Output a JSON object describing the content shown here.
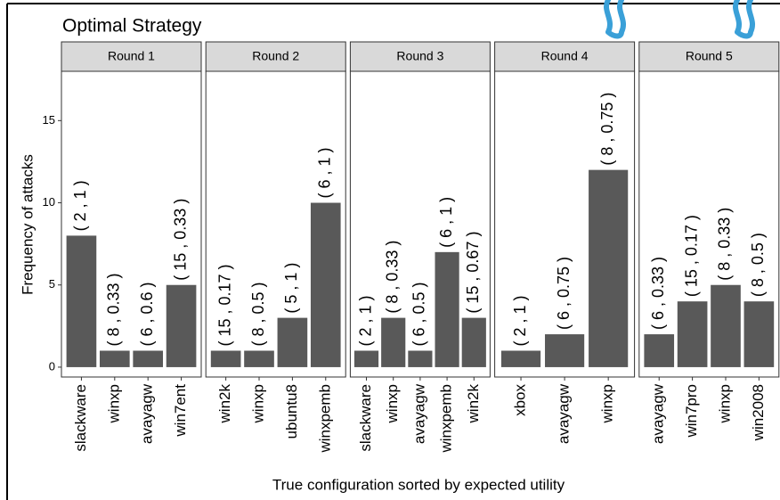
{
  "chart_data": {
    "type": "bar",
    "title": "Optimal Strategy",
    "y_label": "Frequency of attacks",
    "x_label": "True configuration sorted by expected utility",
    "color": "#595959",
    "ylim": [
      -0.6,
      18.0
    ],
    "yticks": [
      0,
      5,
      10,
      15
    ],
    "facets": [
      {
        "title": "Round 1",
        "categories": [
          "slackware",
          "winxp",
          "avayagw",
          "win7ent"
        ],
        "values": [
          8,
          1,
          1,
          5
        ],
        "annotations": [
          "( 2 , 1 )",
          "( 8 , 0.33 )",
          "( 6 , 0.6 )",
          "( 15 , 0.33 )"
        ]
      },
      {
        "title": "Round 2",
        "categories": [
          "win2k",
          "winxp",
          "ubuntu8",
          "winxpemb"
        ],
        "values": [
          1,
          1,
          3,
          10
        ],
        "annotations": [
          "( 15 , 0.17 )",
          "( 8 , 0.5 )",
          "( 5 , 1 )",
          "( 6 , 1 )"
        ]
      },
      {
        "title": "Round 3",
        "categories": [
          "slackware",
          "winxp",
          "avayagw",
          "winxpemb",
          "win2k"
        ],
        "values": [
          1,
          3,
          1,
          7,
          3
        ],
        "annotations": [
          "( 2 , 1 )",
          "( 8 , 0.33 )",
          "( 6 , 0.5 )",
          "( 6 , 1 )",
          "( 15 , 0.67 )"
        ]
      },
      {
        "title": "Round 4",
        "categories": [
          "xbox",
          "avayagw",
          "winxp"
        ],
        "values": [
          1,
          2,
          12
        ],
        "annotations": [
          "( 2 , 1 )",
          "( 6 , 0.75 )",
          "( 8 , 0.75 )"
        ]
      },
      {
        "title": "Round 5",
        "categories": [
          "avayagw",
          "win7pro",
          "winxp",
          "win2008"
        ],
        "values": [
          2,
          4,
          5,
          4
        ],
        "annotations": [
          "( 6 , 0.33 )",
          "( 15 , 0.17 )",
          "( 8 , 0.33 )",
          "( 8 , 0.5 )"
        ]
      }
    ]
  }
}
